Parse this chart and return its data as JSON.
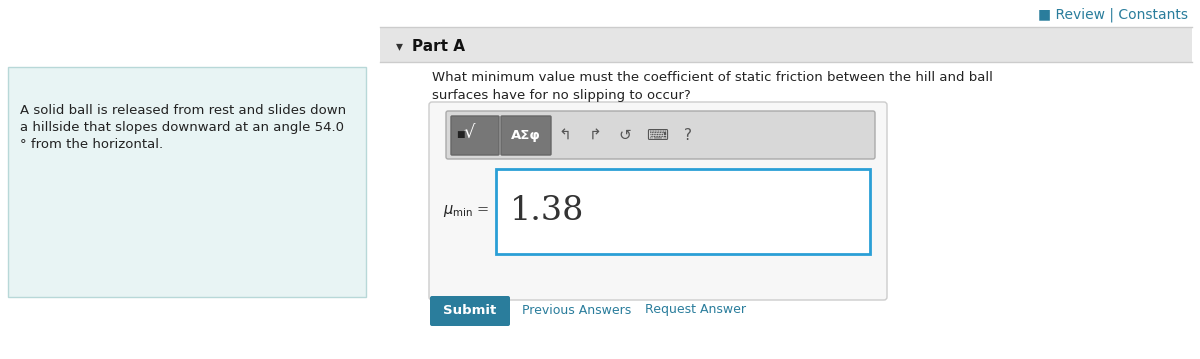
{
  "bg_color": "#ffffff",
  "left_panel_bg": "#e8f4f4",
  "left_panel_line1": "A solid ball is released from rest and slides down",
  "left_panel_line2": "a hillside that slopes downward at an angle 54.0",
  "left_panel_line3": "° from the horizontal.",
  "left_panel_text_color": "#222222",
  "top_right_text": "■ Review | Constants",
  "top_right_color": "#2a7d9c",
  "part_a_bg": "#e8e8e8",
  "question_line1": "What minimum value must the coefficient of static friction between the hill and ball",
  "question_line2": "surfaces have for no slipping to occur?",
  "toolbar_btn2": "AΣφ",
  "answer_value": "1.38",
  "answer_border_color": "#2a9fd6",
  "answer_box_bg": "#ffffff",
  "submit_btn_text": "Submit",
  "submit_btn_bg": "#2a7d9c",
  "submit_btn_text_color": "#ffffff",
  "prev_answers_text": "Previous Answers",
  "request_answer_text": "Request Answer",
  "link_color": "#2a7d9c",
  "divider_color": "#cccccc",
  "outer_box_border": "#cccccc",
  "inner_toolbar_border": "#aaaaaa",
  "toolbar_bg": "#d8d8d8"
}
